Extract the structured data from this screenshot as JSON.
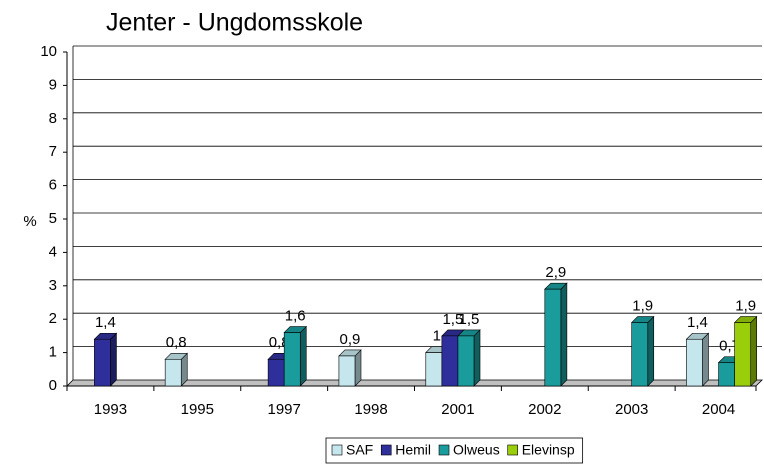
{
  "chart_data": {
    "type": "bar",
    "title": "Jenter - Ungdomsskole",
    "y_label": "%",
    "categories": [
      "1993",
      "1995",
      "1997",
      "1998",
      "2001",
      "2002",
      "2003",
      "2004"
    ],
    "series": [
      {
        "name": "SAF",
        "color": "#c4e6ec",
        "values": [
          null,
          0.8,
          null,
          0.9,
          1,
          null,
          null,
          1.4
        ],
        "value_labels": [
          null,
          "0,8",
          null,
          "0,9",
          "1",
          null,
          null,
          "1,4"
        ]
      },
      {
        "name": "Hemil",
        "color": "#2f2f9c",
        "values": [
          1.4,
          null,
          0.8,
          null,
          1.5,
          null,
          null,
          null
        ],
        "value_labels": [
          "1,4",
          null,
          "0,8",
          null,
          "1,5",
          null,
          null,
          null
        ]
      },
      {
        "name": "Olweus",
        "color": "#1a9c9c",
        "values": [
          null,
          null,
          1.6,
          null,
          1.5,
          2.9,
          1.9,
          0.7
        ],
        "value_labels": [
          null,
          null,
          "1,6",
          null,
          "1,5",
          "2,9",
          "1,9",
          "0,7"
        ]
      },
      {
        "name": "Elevinsp",
        "color": "#9acd0a",
        "values": [
          null,
          null,
          null,
          null,
          null,
          null,
          null,
          1.9
        ],
        "value_labels": [
          null,
          null,
          null,
          null,
          null,
          null,
          null,
          "1,9"
        ]
      }
    ],
    "ylim": [
      0,
      10
    ],
    "yticks": [
      0,
      1,
      2,
      3,
      4,
      5,
      6,
      7,
      8,
      9,
      10
    ],
    "grid": true,
    "legend": "bottom"
  }
}
